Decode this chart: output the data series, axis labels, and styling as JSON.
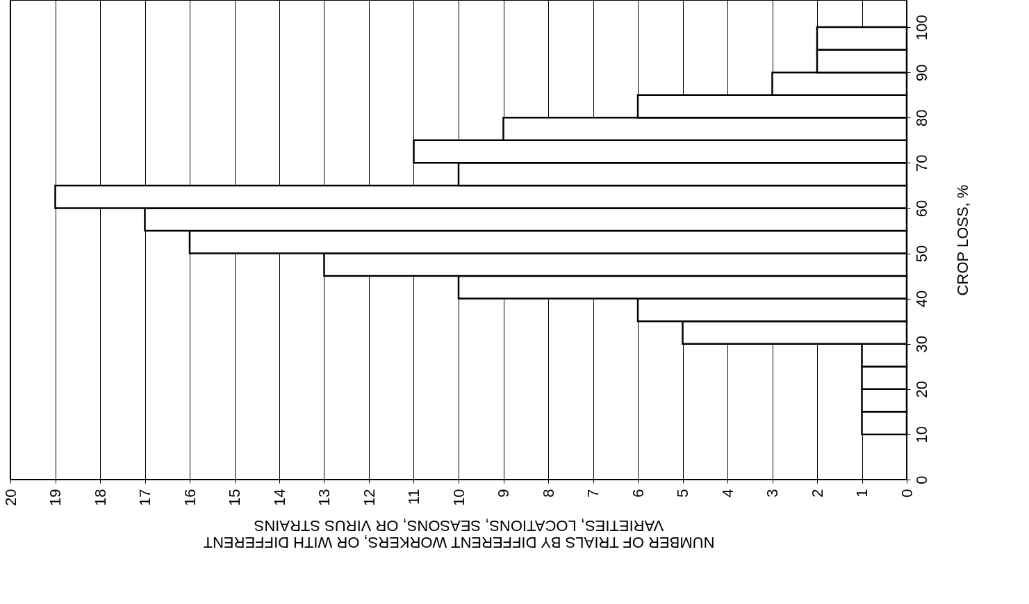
{
  "chart_data": {
    "type": "histogram",
    "orientation": "horizontal",
    "xlabel": "NUMBER OF TRIALS BY DIFFERENT WORKERS, OR WITH DIFFERENT VARIETIES, LOCATIONS, SEASONS, OR VIRUS STRAINS",
    "ylabel": "CROP LOSS, %",
    "bins": [
      0,
      5,
      10,
      15,
      20,
      25,
      30,
      35,
      40,
      45,
      50,
      55,
      60,
      65,
      70,
      75,
      80,
      85,
      90,
      95,
      100
    ],
    "values": [
      0,
      0,
      1,
      1,
      1,
      1,
      5,
      6,
      10,
      13,
      16,
      17,
      19,
      10,
      11,
      9,
      6,
      3,
      2,
      2
    ],
    "color": "#ffffff",
    "xlim": [
      20,
      0
    ],
    "xticks": [
      20,
      19,
      18,
      17,
      16,
      15,
      14,
      13,
      12,
      11,
      10,
      9,
      8,
      7,
      6,
      5,
      4,
      3,
      2,
      1,
      0
    ],
    "ylim": [
      0,
      106
    ],
    "yticks": [
      0,
      10,
      20,
      30,
      40,
      50,
      60,
      70,
      80,
      90,
      100
    ],
    "grid": "x"
  }
}
